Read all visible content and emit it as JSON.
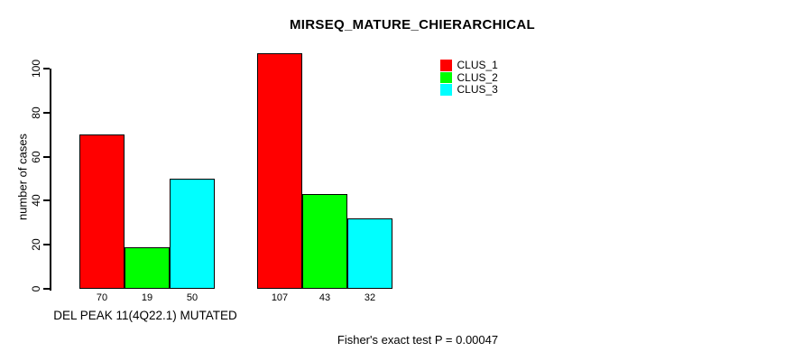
{
  "chart_data": {
    "type": "bar",
    "title": "MIRSEQ_MATURE_CHIERARCHICAL",
    "ylabel": "number of cases",
    "ylim": [
      0,
      110
    ],
    "yticks": [
      0,
      20,
      40,
      60,
      80,
      100
    ],
    "grid": false,
    "background": "#ffffff",
    "axis_color": "#000000",
    "group_labels": [
      "DEL PEAK 11(4Q22.1) MUTATED",
      ""
    ],
    "series": [
      {
        "name": "CLUS_1",
        "color": "#ff0000",
        "values": [
          70,
          107
        ]
      },
      {
        "name": "CLUS_2",
        "color": "#00ff00",
        "values": [
          19,
          43
        ]
      },
      {
        "name": "CLUS_3",
        "color": "#00ffff",
        "values": [
          50,
          32
        ]
      }
    ],
    "bar_value_labels": [
      [
        70,
        19,
        50
      ],
      [
        107,
        43,
        32
      ]
    ],
    "legend": {
      "position": "top-right",
      "entries": [
        "CLUS_1",
        "CLUS_2",
        "CLUS_3"
      ]
    },
    "footnote": "Fisher's exact test P = 0.00047"
  }
}
